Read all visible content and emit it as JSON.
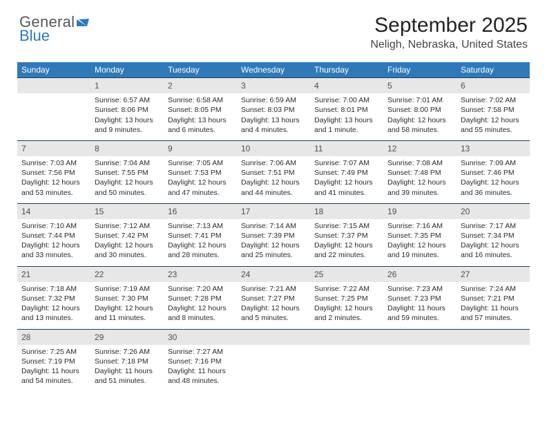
{
  "logo": {
    "top": "General",
    "bottom": "Blue",
    "mark_color": "#2f79b9"
  },
  "title": "September 2025",
  "location": "Neligh, Nebraska, United States",
  "colors": {
    "header_bg": "#2f79b9",
    "header_text": "#ffffff",
    "date_bg": "#e7e7e7",
    "date_border": "#1f3e56",
    "text": "#2a2a2a"
  },
  "day_headers": [
    "Sunday",
    "Monday",
    "Tuesday",
    "Wednesday",
    "Thursday",
    "Friday",
    "Saturday"
  ],
  "weeks": [
    {
      "dates": [
        "",
        "1",
        "2",
        "3",
        "4",
        "5",
        "6"
      ],
      "details": [
        [],
        [
          "Sunrise: 6:57 AM",
          "Sunset: 8:06 PM",
          "Daylight: 13 hours",
          "and 9 minutes."
        ],
        [
          "Sunrise: 6:58 AM",
          "Sunset: 8:05 PM",
          "Daylight: 13 hours",
          "and 6 minutes."
        ],
        [
          "Sunrise: 6:59 AM",
          "Sunset: 8:03 PM",
          "Daylight: 13 hours",
          "and 4 minutes."
        ],
        [
          "Sunrise: 7:00 AM",
          "Sunset: 8:01 PM",
          "Daylight: 13 hours",
          "and 1 minute."
        ],
        [
          "Sunrise: 7:01 AM",
          "Sunset: 8:00 PM",
          "Daylight: 12 hours",
          "and 58 minutes."
        ],
        [
          "Sunrise: 7:02 AM",
          "Sunset: 7:58 PM",
          "Daylight: 12 hours",
          "and 55 minutes."
        ]
      ]
    },
    {
      "dates": [
        "7",
        "8",
        "9",
        "10",
        "11",
        "12",
        "13"
      ],
      "details": [
        [
          "Sunrise: 7:03 AM",
          "Sunset: 7:56 PM",
          "Daylight: 12 hours",
          "and 53 minutes."
        ],
        [
          "Sunrise: 7:04 AM",
          "Sunset: 7:55 PM",
          "Daylight: 12 hours",
          "and 50 minutes."
        ],
        [
          "Sunrise: 7:05 AM",
          "Sunset: 7:53 PM",
          "Daylight: 12 hours",
          "and 47 minutes."
        ],
        [
          "Sunrise: 7:06 AM",
          "Sunset: 7:51 PM",
          "Daylight: 12 hours",
          "and 44 minutes."
        ],
        [
          "Sunrise: 7:07 AM",
          "Sunset: 7:49 PM",
          "Daylight: 12 hours",
          "and 41 minutes."
        ],
        [
          "Sunrise: 7:08 AM",
          "Sunset: 7:48 PM",
          "Daylight: 12 hours",
          "and 39 minutes."
        ],
        [
          "Sunrise: 7:09 AM",
          "Sunset: 7:46 PM",
          "Daylight: 12 hours",
          "and 36 minutes."
        ]
      ]
    },
    {
      "dates": [
        "14",
        "15",
        "16",
        "17",
        "18",
        "19",
        "20"
      ],
      "details": [
        [
          "Sunrise: 7:10 AM",
          "Sunset: 7:44 PM",
          "Daylight: 12 hours",
          "and 33 minutes."
        ],
        [
          "Sunrise: 7:12 AM",
          "Sunset: 7:42 PM",
          "Daylight: 12 hours",
          "and 30 minutes."
        ],
        [
          "Sunrise: 7:13 AM",
          "Sunset: 7:41 PM",
          "Daylight: 12 hours",
          "and 28 minutes."
        ],
        [
          "Sunrise: 7:14 AM",
          "Sunset: 7:39 PM",
          "Daylight: 12 hours",
          "and 25 minutes."
        ],
        [
          "Sunrise: 7:15 AM",
          "Sunset: 7:37 PM",
          "Daylight: 12 hours",
          "and 22 minutes."
        ],
        [
          "Sunrise: 7:16 AM",
          "Sunset: 7:35 PM",
          "Daylight: 12 hours",
          "and 19 minutes."
        ],
        [
          "Sunrise: 7:17 AM",
          "Sunset: 7:34 PM",
          "Daylight: 12 hours",
          "and 16 minutes."
        ]
      ]
    },
    {
      "dates": [
        "21",
        "22",
        "23",
        "24",
        "25",
        "26",
        "27"
      ],
      "details": [
        [
          "Sunrise: 7:18 AM",
          "Sunset: 7:32 PM",
          "Daylight: 12 hours",
          "and 13 minutes."
        ],
        [
          "Sunrise: 7:19 AM",
          "Sunset: 7:30 PM",
          "Daylight: 12 hours",
          "and 11 minutes."
        ],
        [
          "Sunrise: 7:20 AM",
          "Sunset: 7:28 PM",
          "Daylight: 12 hours",
          "and 8 minutes."
        ],
        [
          "Sunrise: 7:21 AM",
          "Sunset: 7:27 PM",
          "Daylight: 12 hours",
          "and 5 minutes."
        ],
        [
          "Sunrise: 7:22 AM",
          "Sunset: 7:25 PM",
          "Daylight: 12 hours",
          "and 2 minutes."
        ],
        [
          "Sunrise: 7:23 AM",
          "Sunset: 7:23 PM",
          "Daylight: 11 hours",
          "and 59 minutes."
        ],
        [
          "Sunrise: 7:24 AM",
          "Sunset: 7:21 PM",
          "Daylight: 11 hours",
          "and 57 minutes."
        ]
      ]
    },
    {
      "dates": [
        "28",
        "29",
        "30",
        "",
        "",
        "",
        ""
      ],
      "details": [
        [
          "Sunrise: 7:25 AM",
          "Sunset: 7:19 PM",
          "Daylight: 11 hours",
          "and 54 minutes."
        ],
        [
          "Sunrise: 7:26 AM",
          "Sunset: 7:18 PM",
          "Daylight: 11 hours",
          "and 51 minutes."
        ],
        [
          "Sunrise: 7:27 AM",
          "Sunset: 7:16 PM",
          "Daylight: 11 hours",
          "and 48 minutes."
        ],
        [],
        [],
        [],
        []
      ]
    }
  ]
}
